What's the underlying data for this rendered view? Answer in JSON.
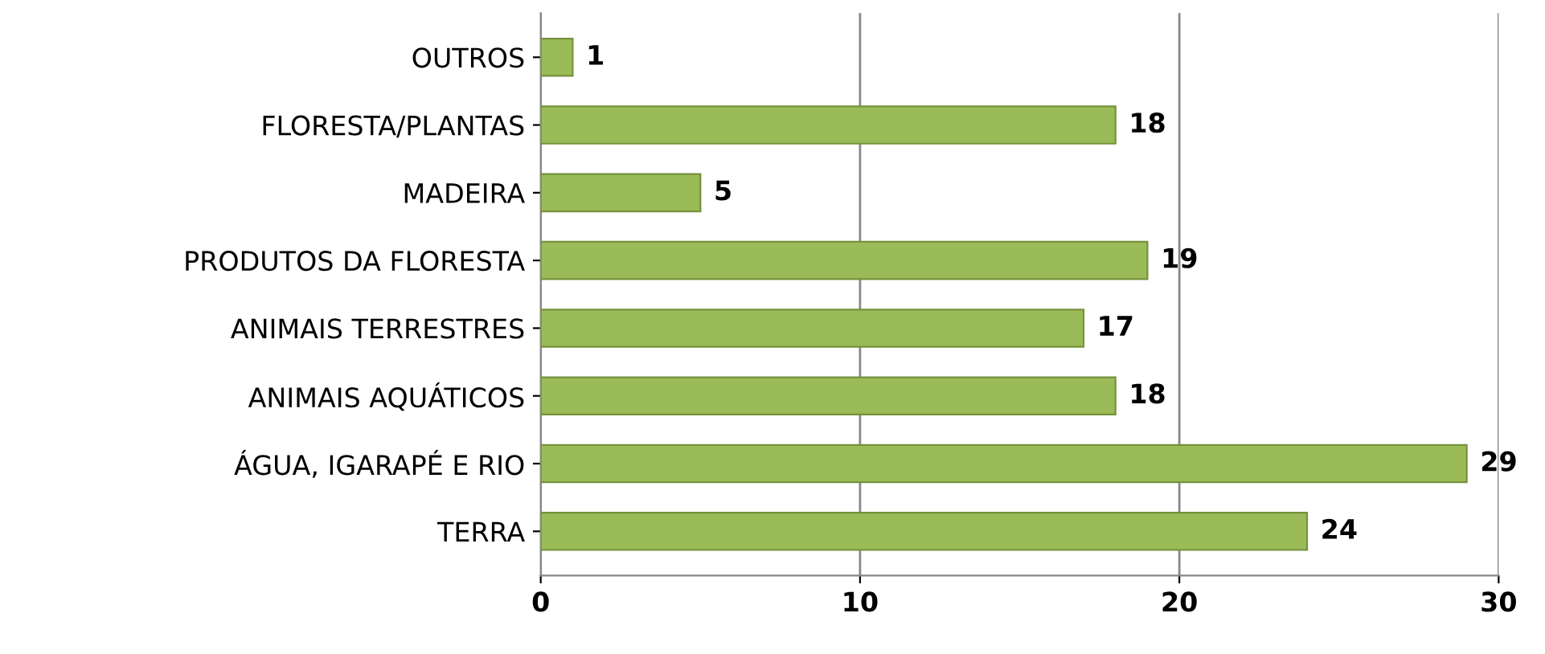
{
  "chart_data": {
    "type": "bar",
    "orientation": "horizontal",
    "categories": [
      "OUTROS",
      "FLORESTA/PLANTAS",
      "MADEIRA",
      "PRODUTOS DA FLORESTA",
      "ANIMAIS TERRESTRES",
      "ANIMAIS AQUÁTICOS",
      "ÁGUA, IGARAPÉ E RIO",
      "TERRA"
    ],
    "values": [
      1,
      18,
      5,
      19,
      17,
      18,
      29,
      24
    ],
    "color": "#9bbb59",
    "xlim": [
      0,
      30
    ],
    "xticks": [
      0,
      10,
      20,
      30
    ],
    "grid": "x",
    "data_labels": true
  }
}
